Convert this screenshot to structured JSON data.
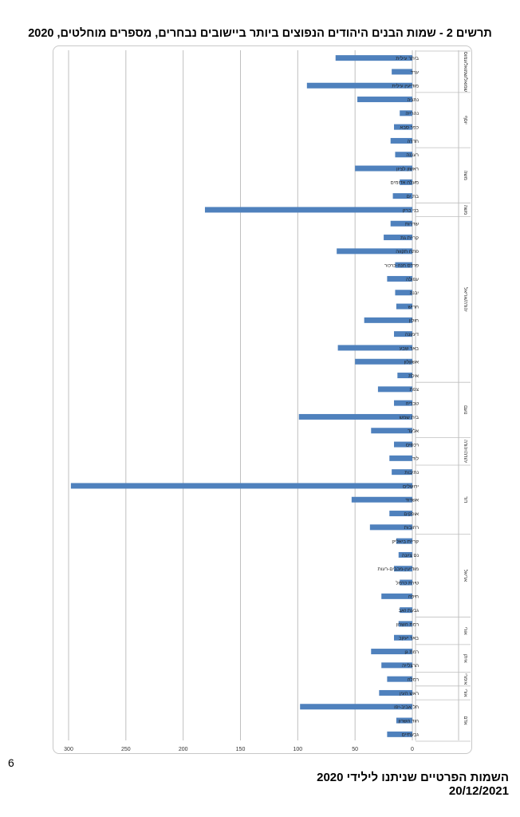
{
  "chart_title": "תרשים 2 - שמות הבנים היהודים הנפוצים ביותר ביישובים נבחרים, מספרים מוחלטים, 2020",
  "page_number": "6",
  "footer": {
    "line1": "השמות הפרטיים שניתנו לילידי 2020",
    "line2": "20/12/2021"
  },
  "colors": {
    "bar": "#4f81bd",
    "grid": "#bfbfbf",
    "separator": "#bfbfbf"
  },
  "chart_data": {
    "type": "bar",
    "orientation": "horizontal",
    "xlim": [
      0,
      300
    ],
    "x_ticks": [
      300,
      250,
      200,
      150,
      100,
      50,
      0
    ],
    "x_reversed": true,
    "grid": true,
    "categories": [
      "ביתר עילית",
      "ערד",
      "מודיעין עילית",
      "נתניה",
      "נהרייה",
      "כפר סבא",
      "חדרה",
      "רעננה",
      "ראשון לציון",
      "מעלה אדומים",
      "בת ים",
      "בני ברק",
      "שדרות",
      "קריית גת",
      "פתח תקווה",
      "פרדס חנה-כרכור",
      "עפולה",
      "יבנה",
      "חריש",
      "חולון",
      "דימונה",
      "באר שבע",
      "אשקלון",
      "אילת",
      "צפת",
      "טבריה",
      "בית שמש",
      "אלעד",
      "רכסים",
      "לוד",
      "נתיבות",
      "ירושלים",
      "אשדוד",
      "אופקים",
      "רחובות",
      "קריית ביאליק",
      "נס ציונה",
      "מודיעין-מכבים-רעות",
      "טירת כרמל",
      "חיפה",
      "גבעת זאב",
      "רמת השרון",
      "באר יעקב",
      "רמת גן",
      "הרצלייה",
      "רמלה",
      "ראש העין",
      "תל אביב-יפו",
      "הוד השרון",
      "גבעתיים"
    ],
    "values": [
      67,
      18,
      92,
      48,
      11,
      16,
      19,
      15,
      50,
      11,
      17,
      181,
      19,
      25,
      66,
      15,
      22,
      15,
      14,
      42,
      16,
      65,
      50,
      13,
      30,
      16,
      99,
      36,
      16,
      20,
      18,
      298,
      53,
      20,
      37,
      14,
      12,
      16,
      11,
      27,
      11,
      12,
      16,
      36,
      27,
      22,
      29,
      98,
      14,
      22
    ],
    "groups": [
      {
        "label": "שמואל/שמואל/עמוס",
        "start": 0,
        "end": 2
      },
      {
        "label": "יוסף",
        "start": 3,
        "end": 6
      },
      {
        "label": "משה",
        "start": 7,
        "end": 10
      },
      {
        "label": "משה",
        "start": 11,
        "end": 11
      },
      {
        "label": "יהודה/אריאל",
        "start": 12,
        "end": 23
      },
      {
        "label": "נועם",
        "start": 24,
        "end": 27
      },
      {
        "label": "יהודה/יהודה",
        "start": 28,
        "end": 29
      },
      {
        "label": "דוד",
        "start": 30,
        "end": 34
      },
      {
        "label": "אריאל",
        "start": 35,
        "end": 40
      },
      {
        "label": "אורי",
        "start": 41,
        "end": 42
      },
      {
        "label": "איתן",
        "start": 43,
        "end": 44
      },
      {
        "label": "אימרי",
        "start": 45,
        "end": 45
      },
      {
        "label": "אורי",
        "start": 46,
        "end": 46
      },
      {
        "label": "אדם",
        "start": 47,
        "end": 49
      }
    ]
  }
}
